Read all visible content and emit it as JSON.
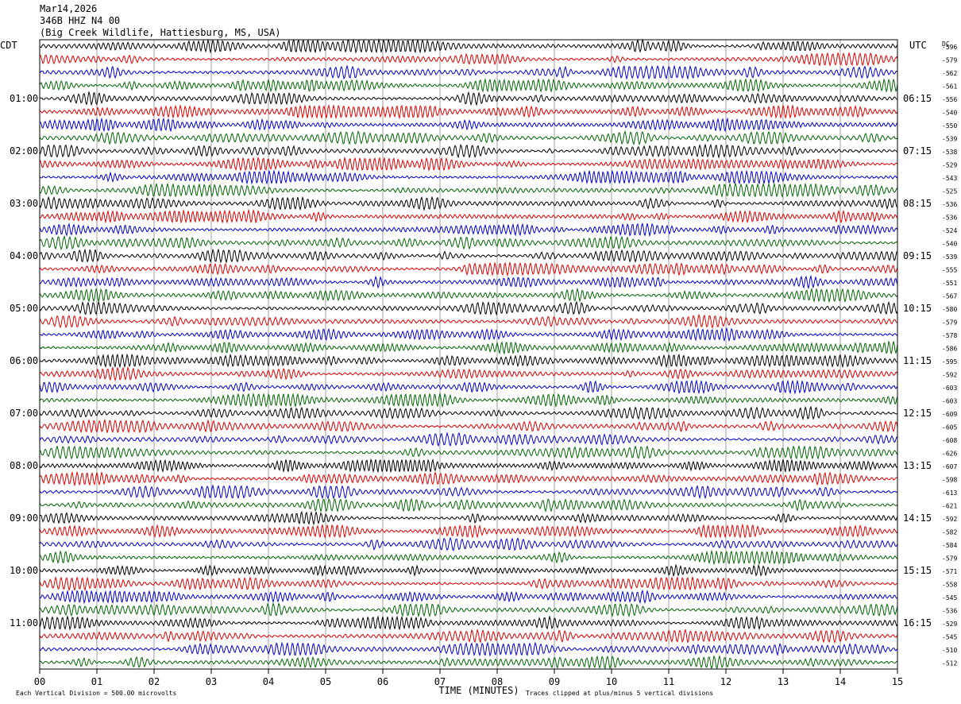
{
  "header": {
    "date": "Mar14,2026",
    "station": "346B HHZ N4 00",
    "location": "(Big Creek Wildlife, Hattiesburg, MS, USA)"
  },
  "chart_data": {
    "type": "line",
    "title": "",
    "left_axis_label": "CDT",
    "right_axis_label": "UTC",
    "dc_label": "DC",
    "xlabel": "TIME (MINUTES)",
    "xlim": [
      0,
      15
    ],
    "x_ticks": [
      "00",
      "01",
      "02",
      "03",
      "04",
      "05",
      "06",
      "07",
      "08",
      "09",
      "10",
      "11",
      "12",
      "13",
      "14",
      "15"
    ],
    "left_hour_labels": [
      "01:00",
      "02:00",
      "03:00",
      "04:00",
      "05:00",
      "06:00",
      "07:00",
      "08:00",
      "09:00",
      "10:00",
      "11:00"
    ],
    "right_hour_labels": [
      "06:15",
      "07:15",
      "08:15",
      "09:15",
      "10:15",
      "11:15",
      "12:15",
      "13:15",
      "14:15",
      "15:15",
      "16:15"
    ],
    "trace_colors": [
      "#000000",
      "#dd0000",
      "#0000cc",
      "#006600"
    ],
    "dc_offsets": [
      -596,
      -579,
      -562,
      -561,
      -556,
      -540,
      -550,
      -539,
      -538,
      -529,
      -543,
      -525,
      -536,
      -536,
      -524,
      -540,
      -539,
      -555,
      -551,
      -567,
      -580,
      -579,
      -578,
      -586,
      -595,
      -592,
      -603,
      -603,
      -609,
      -605,
      -608,
      -626,
      -607,
      -598,
      -613,
      -621,
      -592,
      -582,
      -584,
      -579,
      -571,
      -558,
      -545,
      -536,
      -529,
      -545,
      -510,
      -512
    ],
    "footer_left": "Each Vertical Division =  500.00 microvolts",
    "footer_right": "Traces clipped at plus/minus 5 vertical divisions"
  }
}
